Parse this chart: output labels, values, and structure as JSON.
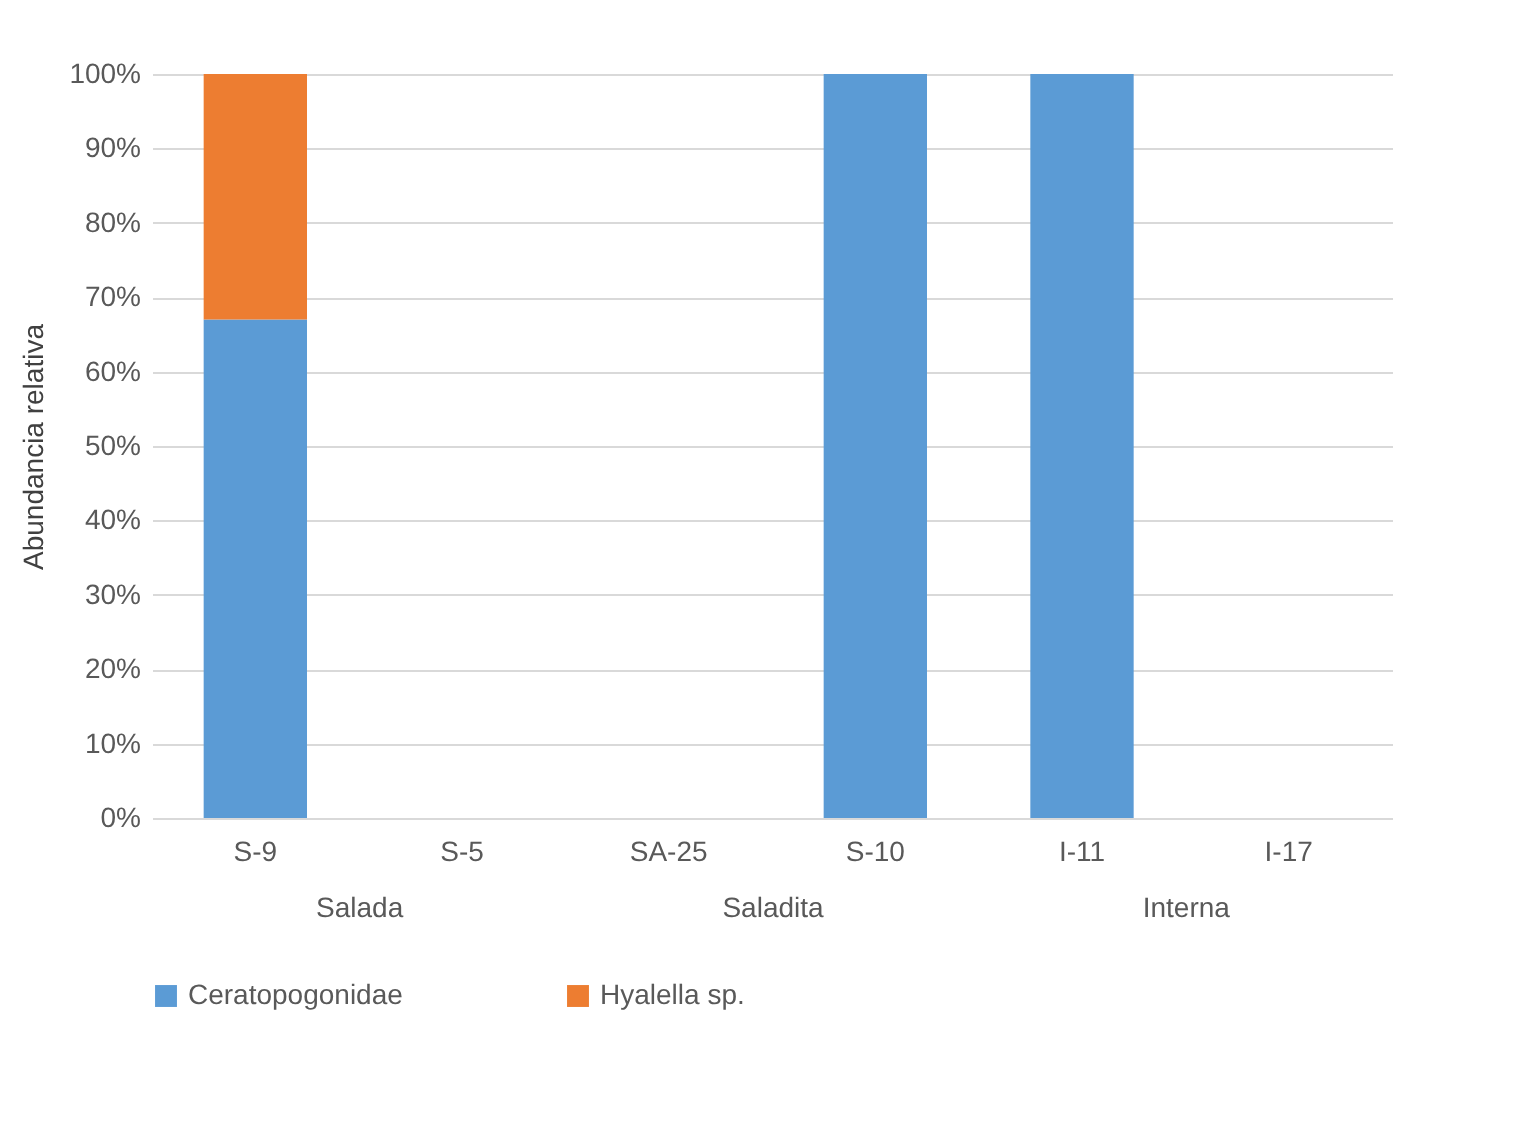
{
  "chart_data": {
    "type": "bar",
    "stacked": true,
    "ylabel": "Abundancia relativa",
    "categories": [
      "S-9",
      "S-5",
      "SA-25",
      "S-10",
      "I-11",
      "I-17"
    ],
    "series": [
      {
        "name": "Ceratopogonidae",
        "color": "#5b9bd5",
        "values": [
          67,
          0,
          0,
          100,
          100,
          0
        ]
      },
      {
        "name": "Hyalella sp.",
        "color": "#ed7d31",
        "values": [
          33,
          0,
          0,
          0,
          0,
          0
        ]
      }
    ],
    "ylim": [
      0,
      100
    ],
    "yticks": [
      {
        "value": 0,
        "label": "0%"
      },
      {
        "value": 10,
        "label": "10%"
      },
      {
        "value": 20,
        "label": "20%"
      },
      {
        "value": 30,
        "label": "30%"
      },
      {
        "value": 40,
        "label": "40%"
      },
      {
        "value": 50,
        "label": "50%"
      },
      {
        "value": 60,
        "label": "60%"
      },
      {
        "value": 70,
        "label": "70%"
      },
      {
        "value": 80,
        "label": "80%"
      },
      {
        "value": 90,
        "label": "90%"
      },
      {
        "value": 100,
        "label": "100%"
      }
    ],
    "grid": "y",
    "legend": "bottom",
    "annotations": [
      "Salada",
      "Saladita",
      "Interna"
    ]
  }
}
